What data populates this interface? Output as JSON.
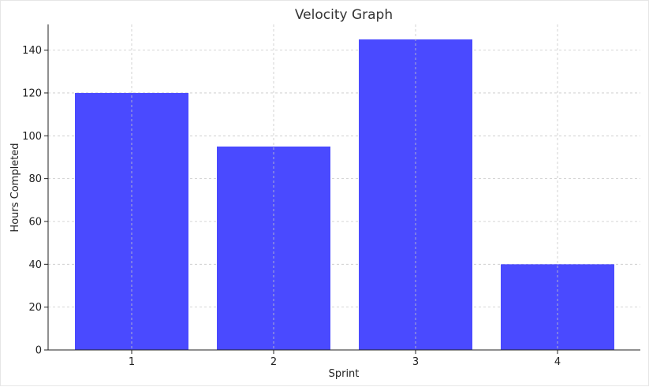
{
  "chart_data": {
    "type": "bar",
    "title": "Velocity Graph",
    "xlabel": "Sprint",
    "ylabel": "Hours Completed",
    "categories": [
      "1",
      "2",
      "3",
      "4"
    ],
    "values": [
      120,
      95,
      145,
      40
    ],
    "ylim": [
      0,
      152
    ],
    "yticks": [
      0,
      20,
      40,
      60,
      80,
      100,
      120,
      140
    ],
    "grid": true,
    "bar_color": "#4a4aff"
  }
}
